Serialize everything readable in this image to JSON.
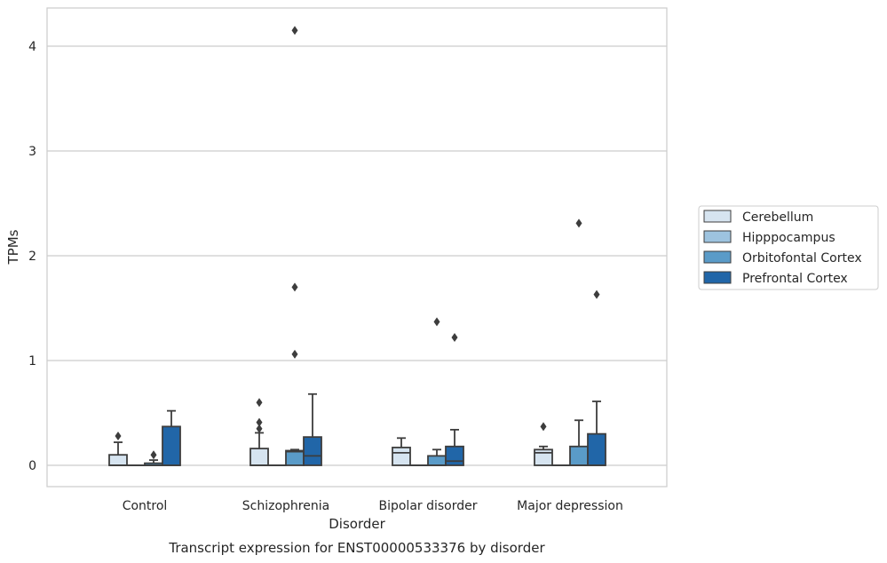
{
  "chart_data": {
    "type": "box",
    "caption": "Transcript expression for ENST00000533376 by disorder",
    "xlabel": "Disorder",
    "ylabel": "TPMs",
    "ylim": [
      -0.2,
      4.37
    ],
    "yticks": [
      0,
      1,
      2,
      3,
      4
    ],
    "grid": "horizontal",
    "legend_position": "right",
    "categories": [
      "Control",
      "Schizophrenia",
      "Bipolar disorder",
      "Major depression"
    ],
    "series": [
      {
        "name": "Cerebellum",
        "color": "#d6e4f0",
        "boxes": [
          {
            "min": 0,
            "q1": 0,
            "median": 0,
            "q3": 0.1,
            "max": 0.22,
            "outliers": [
              0.28
            ]
          },
          {
            "min": 0,
            "q1": 0,
            "median": 0,
            "q3": 0.16,
            "max": 0.31,
            "outliers": [
              0.6,
              0.41,
              0.35
            ]
          },
          {
            "min": 0,
            "q1": 0,
            "median": 0.12,
            "q3": 0.17,
            "max": 0.26,
            "outliers": []
          },
          {
            "min": 0,
            "q1": 0,
            "median": 0.12,
            "q3": 0.15,
            "max": 0.18,
            "outliers": [
              0.37
            ]
          }
        ]
      },
      {
        "name": "Hipppocampus",
        "color": "#9dc3df",
        "boxes": [
          {
            "min": 0,
            "q1": 0,
            "median": 0,
            "q3": 0,
            "max": 0,
            "outliers": []
          },
          {
            "min": 0,
            "q1": 0,
            "median": 0,
            "q3": 0,
            "max": 0,
            "outliers": []
          },
          {
            "min": 0,
            "q1": 0,
            "median": 0,
            "q3": 0,
            "max": 0,
            "outliers": []
          },
          {
            "min": 0,
            "q1": 0,
            "median": 0,
            "q3": 0,
            "max": 0,
            "outliers": []
          }
        ]
      },
      {
        "name": "Orbitofontal Cortex",
        "color": "#5a9bc8",
        "boxes": [
          {
            "min": 0,
            "q1": 0,
            "median": 0,
            "q3": 0.02,
            "max": 0.05,
            "outliers": [
              0.1
            ]
          },
          {
            "min": 0,
            "q1": 0,
            "median": 0.13,
            "q3": 0.14,
            "max": 0.15,
            "outliers": [
              4.15,
              1.7,
              1.06
            ]
          },
          {
            "min": 0,
            "q1": 0,
            "median": 0,
            "q3": 0.09,
            "max": 0.15,
            "outliers": [
              1.37
            ]
          },
          {
            "min": 0,
            "q1": 0,
            "median": 0,
            "q3": 0.18,
            "max": 0.43,
            "outliers": [
              2.31
            ]
          }
        ]
      },
      {
        "name": "Prefrontal Cortex",
        "color": "#2166a8",
        "boxes": [
          {
            "min": 0,
            "q1": 0,
            "median": 0,
            "q3": 0.37,
            "max": 0.52,
            "outliers": []
          },
          {
            "min": 0,
            "q1": 0,
            "median": 0.09,
            "q3": 0.27,
            "max": 0.68,
            "outliers": []
          },
          {
            "min": 0,
            "q1": 0,
            "median": 0.04,
            "q3": 0.18,
            "max": 0.34,
            "outliers": [
              1.22
            ]
          },
          {
            "min": 0,
            "q1": 0,
            "median": 0,
            "q3": 0.3,
            "max": 0.61,
            "outliers": [
              1.63
            ]
          }
        ]
      }
    ]
  }
}
